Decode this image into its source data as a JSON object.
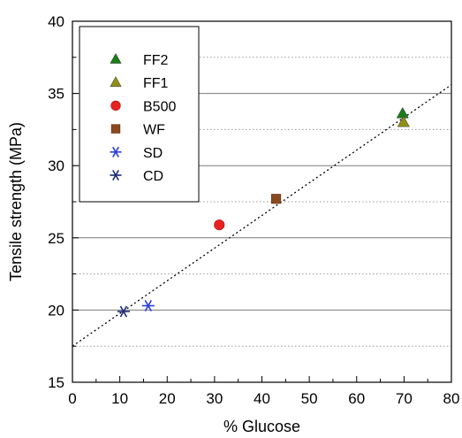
{
  "chart_data": {
    "type": "scatter",
    "title": "",
    "xlabel": "% Glucose",
    "ylabel": "Tensile strength (MPa)",
    "xlim": [
      0,
      80
    ],
    "ylim": [
      15,
      40
    ],
    "xticks": [
      0,
      10,
      20,
      30,
      40,
      50,
      60,
      70,
      80
    ],
    "yticks": [
      15,
      20,
      25,
      30,
      35,
      40
    ],
    "grid": {
      "major_y": [
        20,
        25,
        30,
        35
      ],
      "minor_y": [
        17.5,
        22.5,
        27.5,
        32.5,
        37.5
      ],
      "major_style": "solid",
      "minor_style": "dotted"
    },
    "legend_position": "top-left",
    "series": [
      {
        "name": "FF2",
        "marker": "triangle",
        "color": "#1a7f1a",
        "points": [
          [
            69.7,
            33.6
          ]
        ]
      },
      {
        "name": "FF1",
        "marker": "triangle",
        "color": "#8f8f14",
        "points": [
          [
            69.9,
            33.0
          ]
        ]
      },
      {
        "name": "B500",
        "marker": "circle",
        "color": "#e8221f",
        "points": [
          [
            31.0,
            25.9
          ]
        ]
      },
      {
        "name": "WF",
        "marker": "square",
        "color": "#8b4a1e",
        "points": [
          [
            43.0,
            27.7
          ]
        ]
      },
      {
        "name": "SD",
        "marker": "asterisk",
        "color": "#2a3fd6",
        "points": [
          [
            16.0,
            20.3
          ]
        ]
      },
      {
        "name": "CD",
        "marker": "asterisk",
        "color": "#1c2a7a",
        "points": [
          [
            10.8,
            19.9
          ]
        ]
      }
    ],
    "trendline": {
      "style": "dotted",
      "color": "#000000",
      "from": [
        0,
        17.5
      ],
      "to": [
        80,
        35.6
      ]
    }
  }
}
